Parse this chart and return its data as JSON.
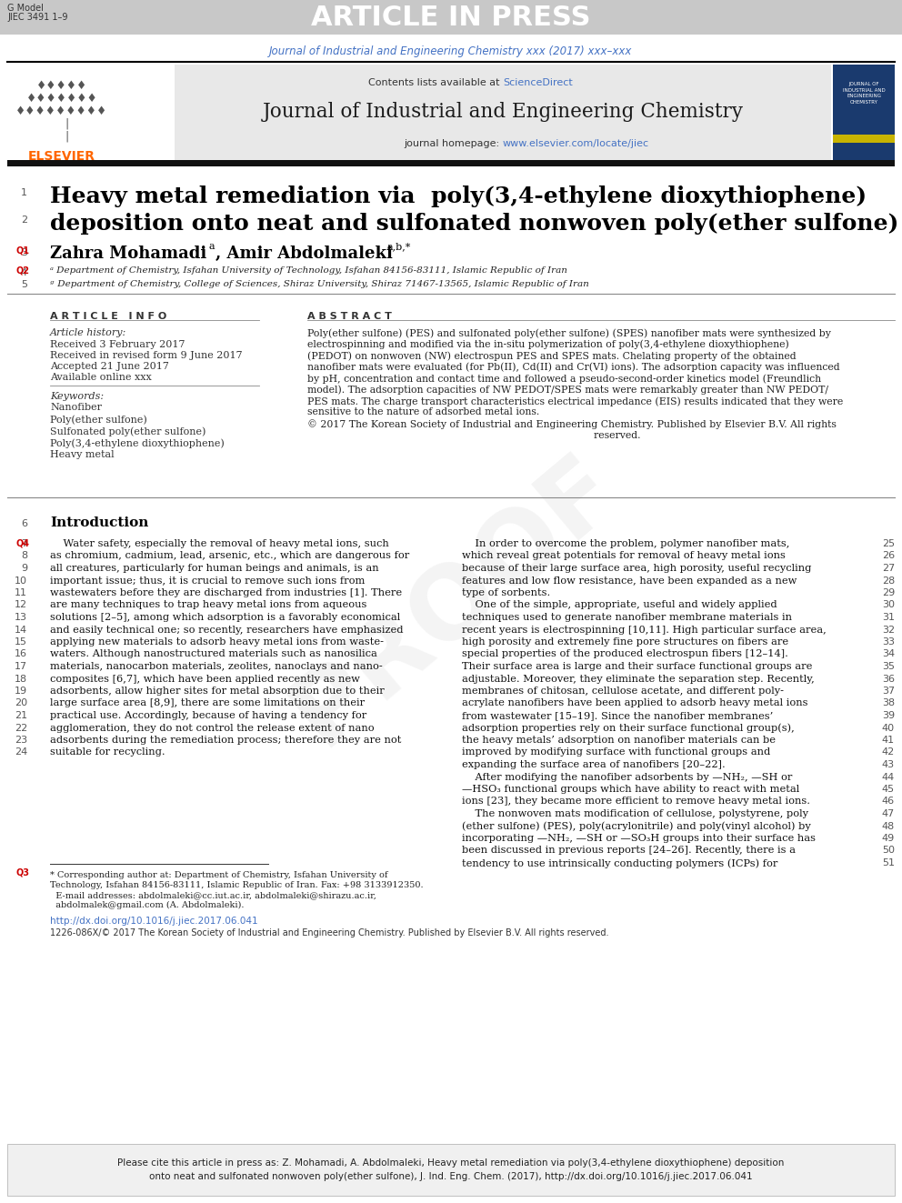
{
  "page_bg": "#ffffff",
  "header_bar_color": "#c8c8c8",
  "header_bar_text": "ARTICLE IN PRESS",
  "header_bar_text_color": "#ffffff",
  "header_top_left_1": "G Model",
  "header_top_left_2": "JIEC 3491 1–9",
  "journal_citation": "Journal of Industrial and Engineering Chemistry xxx (2017) xxx–xxx",
  "journal_citation_color": "#4472c4",
  "sciencedirect_color": "#4472c4",
  "journal_name": "Journal of Industrial and Engineering Chemistry",
  "journal_homepage_url": "www.elsevier.com/locate/jiec",
  "journal_homepage_color": "#4472c4",
  "title_line1": "Heavy metal remediation via  poly(3,4-ethylene dioxythiophene)",
  "title_line2": "deposition onto neat and sulfonated nonwoven poly(ether sulfone)",
  "q_marker_color": "#cc0000",
  "affil_a": "ᵃ Department of Chemistry, Isfahan University of Technology, Isfahan 84156-83111, Islamic Republic of Iran",
  "affil_b": "ᶢ Department of Chemistry, College of Sciences, Shiraz University, Shiraz 71467-13565, Islamic Republic of Iran",
  "article_info_header": "ARTICLE INFO",
  "abstract_header": "ABSTRACT",
  "article_history_label": "Article history:",
  "received": "Received 3 February 2017",
  "revised": "Received in revised form 9 June 2017",
  "accepted": "Accepted 21 June 2017",
  "available": "Available online xxx",
  "keywords_label": "Keywords:",
  "keywords": [
    "Nanofiber",
    "Poly(ether sulfone)",
    "Sulfonated poly(ether sulfone)",
    "Poly(3,4-ethylene dioxythiophene)",
    "Heavy metal"
  ],
  "abstract_lines": [
    "Poly(ether sulfone) (PES) and sulfonated poly(ether sulfone) (SPES) nanofiber mats were synthesized by",
    "electrospinning and modified via the in-situ polymerization of poly(3,4-ethylene dioxythiophene)",
    "(PEDOT) on nonwoven (NW) electrospun PES and SPES mats. Chelating property of the obtained",
    "nanofiber mats were evaluated (for Pb(II), Cd(II) and Cr(VI) ions). The adsorption capacity was influenced",
    "by pH, concentration and contact time and followed a pseudo-second-order kinetics model (Freundlich",
    "model). The adsorption capacities of NW PEDOT/SPES mats were remarkably greater than NW PEDOT/",
    "PES mats. The charge transport characteristics electrical impedance (EIS) results indicated that they were",
    "sensitive to the nature of adsorbed metal ions.",
    "© 2017 The Korean Society of Industrial and Engineering Chemistry. Published by Elsevier B.V. All rights",
    "                                                                                          reserved."
  ],
  "intro_header": "Introduction",
  "left_intro_lines": [
    [
      "7",
      true,
      "    Water safety, especially the removal of heavy metal ions, such"
    ],
    [
      "8",
      false,
      "as chromium, cadmium, lead, arsenic, etc., which are dangerous for"
    ],
    [
      "9",
      false,
      "all creatures, particularly for human beings and animals, is an"
    ],
    [
      "10",
      false,
      "important issue; thus, it is crucial to remove such ions from"
    ],
    [
      "11",
      false,
      "wastewaters before they are discharged from industries [1]. There"
    ],
    [
      "12",
      false,
      "are many techniques to trap heavy metal ions from aqueous"
    ],
    [
      "13",
      false,
      "solutions [2–5], among which adsorption is a favorably economical"
    ],
    [
      "14",
      false,
      "and easily technical one; so recently, researchers have emphasized"
    ],
    [
      "15",
      false,
      "applying new materials to adsorb heavy metal ions from waste-"
    ],
    [
      "16",
      false,
      "waters. Although nanostructured materials such as nanosilica"
    ],
    [
      "17",
      false,
      "materials, nanocarbon materials, zeolites, nanoclays and nano-"
    ],
    [
      "18",
      false,
      "composites [6,7], which have been applied recently as new"
    ],
    [
      "19",
      false,
      "adsorbents, allow higher sites for metal absorption due to their"
    ],
    [
      "20",
      false,
      "large surface area [8,9], there are some limitations on their"
    ],
    [
      "21",
      false,
      "practical use. Accordingly, because of having a tendency for"
    ],
    [
      "22",
      false,
      "agglomeration, they do not control the release extent of nano"
    ],
    [
      "23",
      false,
      "adsorbents during the remediation process; therefore they are not"
    ],
    [
      "24",
      false,
      "suitable for recycling."
    ]
  ],
  "right_intro_lines": [
    "    In order to overcome the problem, polymer nanofiber mats,",
    "which reveal great potentials for removal of heavy metal ions",
    "because of their large surface area, high porosity, useful recycling",
    "features and low flow resistance, have been expanded as a new",
    "type of sorbents.",
    "    One of the simple, appropriate, useful and widely applied",
    "techniques used to generate nanofiber membrane materials in",
    "recent years is electrospinning [10,11]. High particular surface area,",
    "high porosity and extremely fine pore structures on fibers are",
    "special properties of the produced electrospun fibers [12–14].",
    "Their surface area is large and their surface functional groups are",
    "adjustable. Moreover, they eliminate the separation step. Recently,",
    "membranes of chitosan, cellulose acetate, and different poly-",
    "acrylate nanofibers have been applied to adsorb heavy metal ions",
    "from wastewater [15–19]. Since the nanofiber membranes’",
    "adsorption properties rely on their surface functional group(s),",
    "the heavy metals’ adsorption on nanofiber materials can be",
    "improved by modifying surface with functional groups and",
    "expanding the surface area of nanofibers [20–22].",
    "    After modifying the nanofiber adsorbents by —NH₂, —SH or",
    "—HSO₃ functional groups which have ability to react with metal",
    "ions [23], they became more efficient to remove heavy metal ions.",
    "    The nonwoven mats modification of cellulose, polystyrene, poly",
    "(ether sulfone) (PES), poly(acrylonitrile) and poly(vinyl alcohol) by",
    "incorporating —NH₂, —SH or —SO₃H groups into their surface has",
    "been discussed in previous reports [24–26]. Recently, there is a",
    "tendency to use intrinsically conducting polymers (ICPs) for"
  ],
  "right_intro_nums": [
    25,
    26,
    27,
    28,
    29,
    30,
    31,
    32,
    33,
    34,
    35,
    36,
    37,
    38,
    39,
    40,
    41,
    42,
    43,
    44,
    45,
    46,
    47,
    48,
    49,
    50,
    51
  ],
  "fn_lines": [
    "* Corresponding author at: Department of Chemistry, Isfahan University of",
    "Technology, Isfahan 84156-83111, Islamic Republic of Iran. Fax: +98 3133912350.",
    "  E-mail addresses: abdolmaleki@cc.iut.ac.ir, abdolmaleki@shirazu.ac.ir,",
    "  abdolmalek@gmail.com (A. Abdolmaleki)."
  ],
  "doi_text": "http://dx.doi.org/10.1016/j.jiec.2017.06.041",
  "doi_color": "#4472c4",
  "issn_text": "1226-086X/© 2017 The Korean Society of Industrial and Engineering Chemistry. Published by Elsevier B.V. All rights reserved.",
  "cite_lines": [
    "Please cite this article in press as: Z. Mohamadi, A. Abdolmaleki, Heavy metal remediation via poly(3,4-ethylene dioxythiophene) deposition",
    "onto neat and sulfonated nonwoven poly(ether sulfone), J. Ind. Eng. Chem. (2017), http://dx.doi.org/10.1016/j.jiec.2017.06.041"
  ]
}
